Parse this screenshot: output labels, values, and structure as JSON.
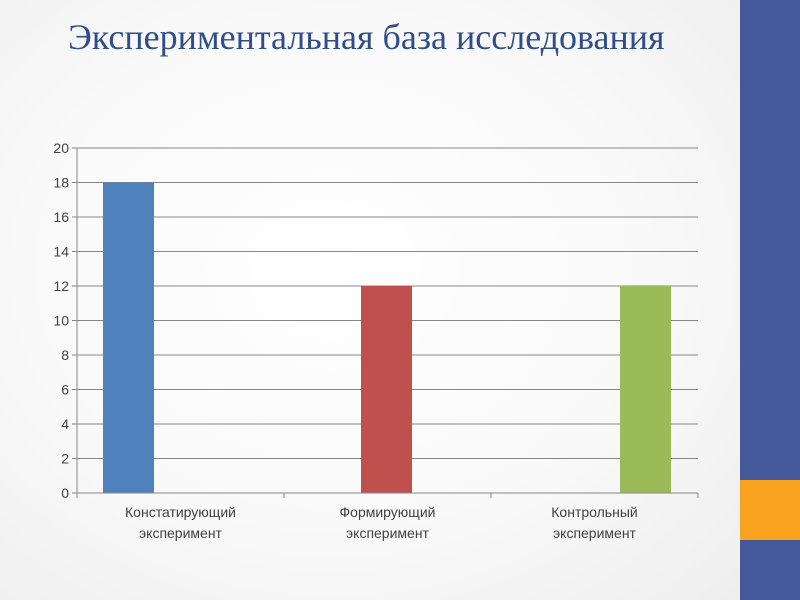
{
  "slide": {
    "title": "Экспериментальная база исследования"
  },
  "colors": {
    "title": "#2F4D8A",
    "side_bar": "#44599A",
    "side_accent": "#F8A21D",
    "gridline": "#878787",
    "axis": "#878787"
  },
  "chart_data": {
    "type": "bar",
    "categories": [
      [
        "Констатирующий",
        "эксперимент"
      ],
      [
        "Формирующий",
        "эксперимент"
      ],
      [
        "Контрольный",
        "эксперимент"
      ]
    ],
    "values": [
      18,
      12,
      12
    ],
    "bar_colors": [
      "#4F81BD",
      "#C0504D",
      "#9BBB59"
    ],
    "ylim": [
      0,
      20
    ],
    "yticks": [
      0,
      2,
      4,
      6,
      8,
      10,
      12,
      14,
      16,
      18,
      20
    ],
    "grid": true,
    "legend": "none"
  }
}
